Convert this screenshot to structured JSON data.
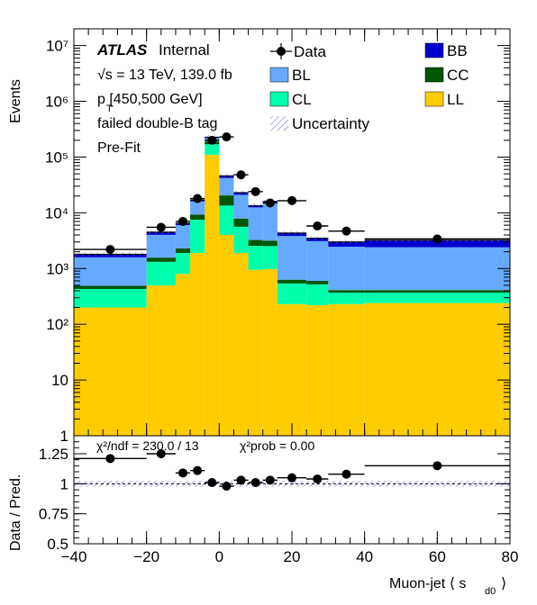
{
  "chart_data": {
    "type": "bar",
    "top_panel": {
      "ylabel": "Events",
      "y_scale": "log",
      "ylim": [
        1,
        20000000
      ],
      "y_tick_labels": [
        "1",
        "10",
        "10²",
        "10³",
        "10⁴",
        "10⁵",
        "10⁶",
        "10⁷"
      ],
      "annotations": {
        "atlas": "ATLAS",
        "internal": "Internal",
        "energy": "√s = 13 TeV, 139.0 fb",
        "pt_range": "p  [450,500 GeV]",
        "pt_sub": "T",
        "tag": "failed double-B tag",
        "fit": "Pre-Fit"
      },
      "legend": {
        "data": "Data",
        "bl": "BL",
        "cl": "CL",
        "uncertainty": "Uncertainty",
        "bb": "BB",
        "cc": "CC",
        "ll": "LL"
      },
      "colors": {
        "LL": "#ffcc00",
        "CL": "#00ffaa",
        "CC": "#005500",
        "BL": "#66aaff",
        "BB": "#0000cc",
        "uncertainty": "#5a5aff"
      },
      "bin_edges": [
        -40,
        -20,
        -12,
        -8,
        -4,
        0,
        4,
        8,
        12,
        16,
        24,
        30,
        40,
        80
      ],
      "series": [
        {
          "name": "LL",
          "values": [
            200,
            500,
            800,
            1900,
            110000,
            4000,
            1900,
            950,
            980,
            230,
            220,
            230,
            240
          ]
        },
        {
          "name": "CL",
          "values": [
            230,
            820,
            1100,
            5600,
            60000,
            9500,
            3700,
            1600,
            1550,
            310,
            300,
            140,
            130
          ]
        },
        {
          "name": "CC",
          "values": [
            60,
            250,
            400,
            1800,
            20000,
            7000,
            2300,
            700,
            640,
            90,
            80,
            40,
            40
          ]
        },
        {
          "name": "BL",
          "values": [
            1100,
            2450,
            3700,
            6700,
            29000,
            21500,
            13100,
            9250,
            11800,
            3200,
            2500,
            2050,
            2000
          ]
        },
        {
          "name": "BB",
          "values": [
            210,
            470,
            500,
            900,
            8000,
            4000,
            2000,
            900,
            1000,
            500,
            400,
            540,
            800
          ]
        }
      ],
      "data_points": {
        "x": [
          -30,
          -16,
          -10,
          -6,
          -2,
          2,
          6,
          10,
          14,
          20,
          27,
          35,
          60
        ],
        "y": [
          2200,
          5500,
          7000,
          18000,
          200000,
          230000,
          48000,
          24000,
          15000,
          16500,
          5800,
          4700,
          3400
        ]
      }
    },
    "bottom_panel": {
      "ylabel": "Data / Pred.",
      "ylim": [
        0.5,
        1.4
      ],
      "y_tick_labels": [
        "0.5",
        "0.75",
        "1",
        "1.25"
      ],
      "y_tick_values": [
        0.5,
        0.75,
        1.0,
        1.25
      ],
      "chi2": "χ²/ndf = 230.0 / 13",
      "chi2_prob": "χ²prob = 0.00",
      "ratio": {
        "x": [
          -30,
          -16,
          -10,
          -6,
          -2,
          2,
          6,
          10,
          14,
          20,
          27,
          35,
          60
        ],
        "y": [
          1.21,
          1.25,
          1.09,
          1.11,
          1.01,
          0.98,
          1.03,
          1.01,
          1.03,
          1.05,
          1.04,
          1.08,
          1.15
        ]
      },
      "uncertainty_band": [
        0.975,
        1.025
      ]
    },
    "xlabel": "Muon-jet ⟨ s",
    "xlabel_sub": "d0",
    "xlabel_end": "⟩",
    "xlim": [
      -40,
      80
    ],
    "x_tick_labels": [
      "−40",
      "−20",
      "0",
      "20",
      "40",
      "60",
      "80"
    ],
    "x_tick_values": [
      -40,
      -20,
      0,
      20,
      40,
      60,
      80
    ]
  }
}
